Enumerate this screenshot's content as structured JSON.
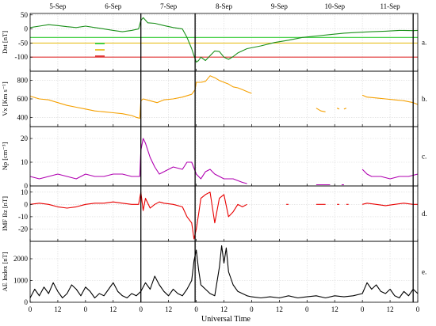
{
  "figure": {
    "xlabel": "Universal Time",
    "dates": [
      "5-Sep",
      "6-Sep",
      "7-Sep",
      "8-Sep",
      "9-Sep",
      "10-Sep",
      "11-Sep"
    ],
    "x_tick_labels": [
      "0",
      "12",
      "0",
      "12",
      "0",
      "12",
      "0",
      "12",
      "0",
      "12",
      "0",
      "12",
      "0",
      "12",
      "0"
    ],
    "event_markers_hours": [
      48.0,
      71.5,
      166.0
    ]
  },
  "chart_data": [
    {
      "type": "line",
      "panel": "a.",
      "ylabel": "Dst [nT]",
      "ylim": [
        -150,
        55
      ],
      "yticks": [
        50,
        0,
        -50,
        -100
      ],
      "xlim": [
        0,
        168
      ],
      "grid": true,
      "color": "#1a8f1a",
      "reference_lines": [
        {
          "y": -30,
          "color": "#33cc33"
        },
        {
          "y": -50,
          "color": "#e8c020"
        },
        {
          "y": -100,
          "color": "#e03030"
        }
      ],
      "legend_swatches": [
        "#33cc33",
        "#e8c020",
        "#e03030"
      ],
      "series": [
        {
          "x": [
            0,
            4,
            8,
            12,
            16,
            20,
            24,
            28,
            32,
            36,
            40,
            44,
            47,
            48,
            49,
            51,
            54,
            58,
            62,
            66,
            68,
            70,
            71,
            72,
            73,
            74,
            76,
            78,
            80,
            82,
            84,
            86,
            88,
            90,
            94,
            100,
            106,
            112,
            118,
            124,
            130,
            136,
            142,
            148,
            154,
            160,
            166,
            168
          ],
          "y": [
            5,
            10,
            15,
            12,
            8,
            5,
            10,
            5,
            0,
            -5,
            -10,
            -5,
            0,
            30,
            40,
            22,
            20,
            12,
            5,
            0,
            -30,
            -70,
            -95,
            -118,
            -112,
            -100,
            -112,
            -95,
            -78,
            -80,
            -100,
            -108,
            -98,
            -85,
            -70,
            -60,
            -48,
            -40,
            -30,
            -25,
            -20,
            -15,
            -12,
            -10,
            -8,
            -5,
            -6,
            -5
          ]
        }
      ]
    },
    {
      "type": "line",
      "panel": "b.",
      "ylabel": "Vx [Km s⁻¹]",
      "ylim": [
        300,
        900
      ],
      "yticks": [
        800,
        600,
        400
      ],
      "xlim": [
        0,
        168
      ],
      "grid": true,
      "color": "#f5a000",
      "segments": [
        {
          "x": [
            0,
            4,
            8,
            12,
            16,
            20,
            24,
            28,
            32,
            36,
            40,
            44,
            46,
            47.5,
            48,
            49,
            52,
            55,
            58,
            62,
            66,
            70,
            71.5,
            72,
            74,
            76,
            78,
            80,
            82,
            84,
            86,
            88,
            90,
            92,
            94,
            96
          ],
          "y": [
            630,
            600,
            590,
            560,
            530,
            510,
            490,
            470,
            460,
            450,
            440,
            420,
            400,
            390,
            580,
            600,
            580,
            560,
            590,
            600,
            620,
            650,
            700,
            780,
            780,
            790,
            850,
            830,
            800,
            780,
            760,
            730,
            720,
            700,
            680,
            660
          ]
        },
        {
          "x": [
            124,
            126,
            128
          ],
          "y": [
            500,
            470,
            460
          ]
        },
        {
          "x": [
            133,
            134
          ],
          "y": [
            500,
            490
          ]
        },
        {
          "x": [
            136,
            137
          ],
          "y": [
            490,
            500
          ]
        },
        {
          "x": [
            144,
            146,
            150,
            154,
            158,
            162,
            166,
            168
          ],
          "y": [
            640,
            620,
            610,
            600,
            590,
            580,
            560,
            540
          ]
        }
      ]
    },
    {
      "type": "line",
      "panel": "c.",
      "ylabel": "Np [cm⁻³]",
      "ylim": [
        0,
        25
      ],
      "yticks": [
        20,
        10,
        0
      ],
      "xlim": [
        0,
        168
      ],
      "grid": true,
      "color": "#b000b0",
      "segments": [
        {
          "x": [
            0,
            4,
            8,
            12,
            16,
            20,
            24,
            28,
            32,
            36,
            40,
            44,
            47.5,
            48,
            49,
            50,
            52,
            54,
            56,
            58,
            62,
            66,
            68,
            70,
            72,
            74,
            76,
            78,
            80,
            84,
            88,
            92,
            94
          ],
          "y": [
            4,
            3,
            4,
            5,
            4,
            3,
            5,
            4,
            4,
            5,
            5,
            4,
            4,
            15,
            20,
            18,
            12,
            8,
            5,
            6,
            8,
            7,
            10,
            10,
            5,
            3,
            6,
            7,
            5,
            3,
            3,
            1.5,
            1
          ]
        },
        {
          "x": [
            124,
            130
          ],
          "y": [
            0.5,
            0.5
          ]
        },
        {
          "x": [
            135,
            136
          ],
          "y": [
            0.5,
            0.5
          ]
        },
        {
          "x": [
            144,
            146,
            148,
            152,
            156,
            160,
            164,
            168
          ],
          "y": [
            7,
            5,
            4,
            4,
            3,
            4,
            4,
            5
          ]
        }
      ]
    },
    {
      "type": "line",
      "panel": "d.",
      "ylabel": "IMF Bz [nT]",
      "ylim": [
        -30,
        15
      ],
      "yticks": [
        10,
        0,
        -10,
        -20
      ],
      "xlim": [
        0,
        168
      ],
      "grid": true,
      "color": "#e80000",
      "segments": [
        {
          "x": [
            0,
            4,
            8,
            12,
            16,
            20,
            24,
            28,
            32,
            36,
            40,
            44,
            47,
            48,
            49,
            50,
            52,
            54,
            56,
            58,
            62,
            66,
            68,
            70,
            71,
            72,
            73,
            74,
            76,
            78,
            80,
            82,
            84,
            86,
            88,
            90,
            92,
            94
          ],
          "y": [
            0,
            1,
            0,
            -2,
            -3,
            -2,
            0,
            1,
            1,
            2,
            1,
            0,
            0,
            10,
            -5,
            5,
            -3,
            0,
            2,
            1,
            0,
            -2,
            -10,
            -15,
            -28,
            -20,
            -8,
            5,
            8,
            10,
            -15,
            5,
            8,
            -10,
            -6,
            0,
            -2,
            0
          ]
        },
        {
          "x": [
            111,
            112
          ],
          "y": [
            0,
            0
          ]
        },
        {
          "x": [
            124,
            128
          ],
          "y": [
            0,
            0
          ]
        },
        {
          "x": [
            133,
            134
          ],
          "y": [
            0,
            0
          ]
        },
        {
          "x": [
            137,
            138
          ],
          "y": [
            0,
            0
          ]
        },
        {
          "x": [
            144,
            146,
            150,
            154,
            158,
            162,
            166,
            168
          ],
          "y": [
            0,
            1,
            0,
            -1,
            0,
            1,
            0,
            0
          ]
        }
      ]
    },
    {
      "type": "line",
      "panel": "e.",
      "ylabel": "AE Index [nT]",
      "ylim": [
        0,
        2800
      ],
      "yticks": [
        2000,
        1000,
        0
      ],
      "xlim": [
        0,
        168
      ],
      "grid": true,
      "color": "#000000",
      "series": [
        {
          "x": [
            0,
            2,
            4,
            6,
            8,
            10,
            12,
            14,
            16,
            18,
            20,
            22,
            24,
            26,
            28,
            30,
            32,
            34,
            36,
            38,
            40,
            42,
            44,
            46,
            48,
            50,
            52,
            54,
            56,
            58,
            60,
            62,
            64,
            66,
            68,
            70,
            71,
            72,
            73,
            74,
            76,
            78,
            80,
            82,
            83,
            84,
            85,
            86,
            88,
            90,
            92,
            94,
            96,
            100,
            104,
            108,
            112,
            116,
            120,
            124,
            128,
            132,
            136,
            140,
            144,
            146,
            148,
            150,
            152,
            154,
            156,
            158,
            160,
            162,
            164,
            166,
            168
          ],
          "y": [
            200,
            600,
            300,
            700,
            400,
            900,
            500,
            200,
            400,
            800,
            600,
            300,
            700,
            500,
            200,
            400,
            300,
            600,
            900,
            500,
            300,
            200,
            400,
            300,
            500,
            900,
            600,
            1200,
            800,
            500,
            300,
            600,
            400,
            300,
            600,
            1000,
            1900,
            2400,
            1500,
            800,
            600,
            400,
            300,
            1600,
            2600,
            1800,
            2500,
            1400,
            800,
            500,
            400,
            300,
            250,
            200,
            250,
            200,
            300,
            200,
            250,
            300,
            200,
            300,
            250,
            300,
            400,
            900,
            600,
            800,
            500,
            400,
            600,
            300,
            200,
            500,
            300,
            600,
            400
          ]
        }
      ]
    }
  ]
}
